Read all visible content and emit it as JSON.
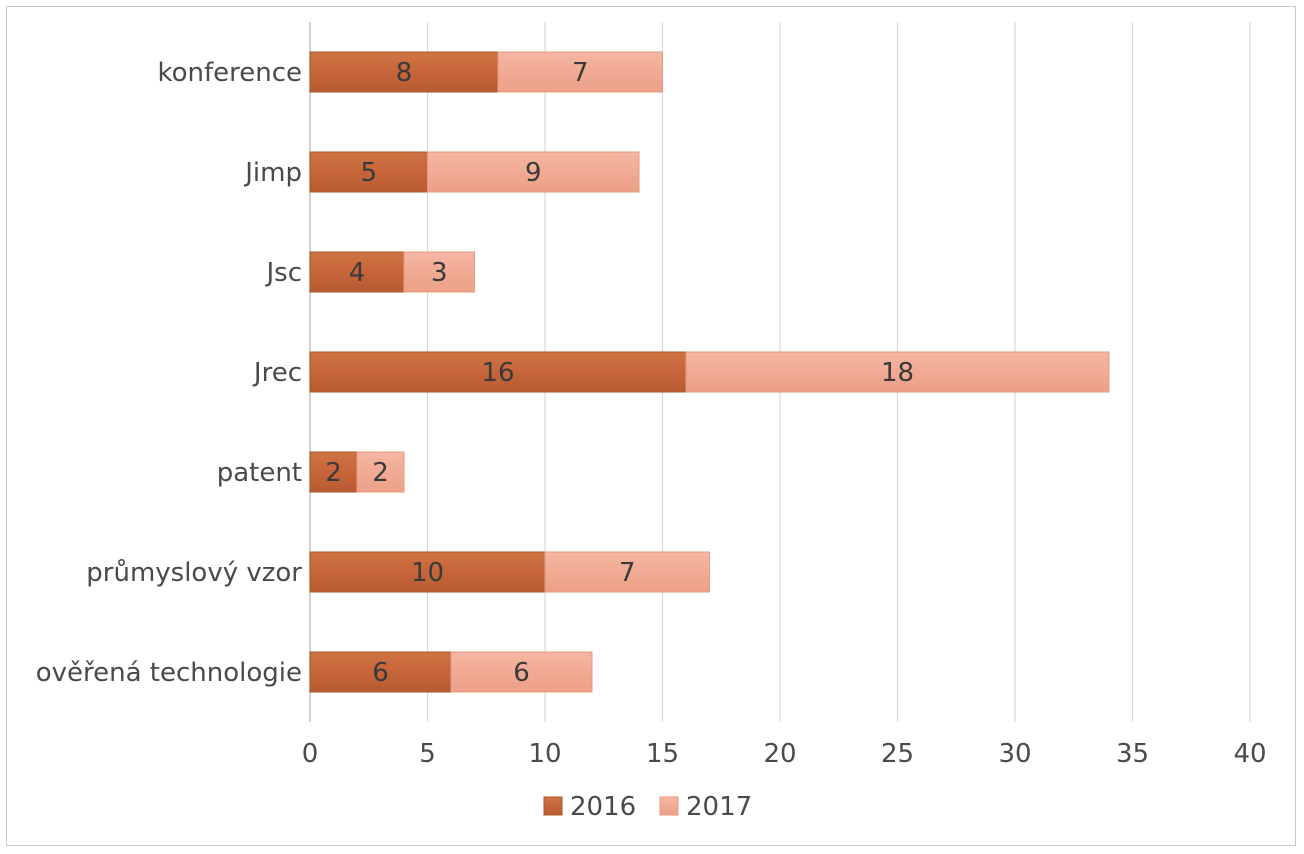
{
  "chart_data": {
    "type": "bar",
    "orientation": "horizontal",
    "stacked": true,
    "categories": [
      "konference",
      "Jimp",
      "Jsc",
      "Jrec",
      "patent",
      "průmyslový vzor",
      "ověřená technologie"
    ],
    "series": [
      {
        "name": "2016",
        "color": "#c8693a",
        "values": [
          8,
          5,
          4,
          16,
          2,
          10,
          6
        ]
      },
      {
        "name": "2017",
        "color": "#f2ab95",
        "values": [
          7,
          9,
          3,
          18,
          2,
          7,
          6
        ]
      }
    ],
    "xlim": [
      0,
      40
    ],
    "xticks": [
      0,
      5,
      10,
      15,
      20,
      25,
      30,
      35,
      40
    ],
    "grid": "vertical",
    "legend_position": "bottom",
    "data_labels": true
  }
}
